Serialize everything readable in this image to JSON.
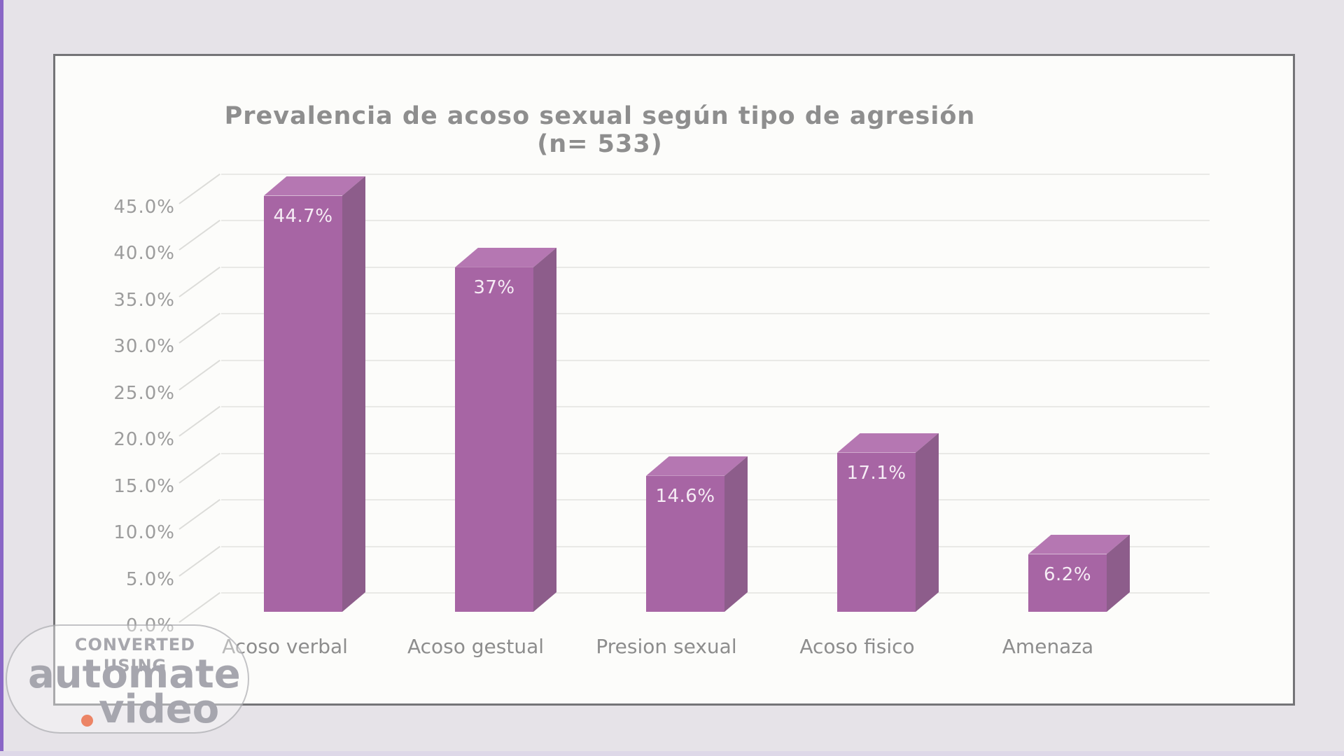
{
  "watermark": {
    "line1": "CONVERTED USING",
    "brand_main": "automate",
    "brand_tld": "video",
    "dot_color": "#ec8465"
  },
  "chart_data": {
    "type": "bar",
    "style": "3d-column",
    "title": "Prevalencia de acoso sexual según tipo de agresión (n= 533)",
    "categories": [
      "Acoso verbal",
      "Acoso gestual",
      "Presion sexual",
      "Acoso fisico",
      "Amenaza"
    ],
    "values": [
      44.7,
      37,
      14.6,
      17.1,
      6.2
    ],
    "data_labels": [
      "44.7%",
      "37%",
      "14.6%",
      "17.1%",
      "6.2%"
    ],
    "xlabel": "",
    "ylabel": "",
    "ylim": [
      0,
      45
    ],
    "y_ticks": [
      {
        "value": 45,
        "label": "45.0%"
      },
      {
        "value": 40,
        "label": "40.0%"
      },
      {
        "value": 35,
        "label": "35.0%"
      },
      {
        "value": 30,
        "label": "30.0%"
      },
      {
        "value": 25,
        "label": "25.0%"
      },
      {
        "value": 20,
        "label": "20.0%"
      },
      {
        "value": 15,
        "label": "15.0%"
      },
      {
        "value": 10,
        "label": "10.0%"
      },
      {
        "value": 5,
        "label": "5.0%"
      },
      {
        "value": 0,
        "label": "0.0%"
      }
    ],
    "grid": true,
    "legend": false,
    "colors": {
      "bar_front": "#a765a4",
      "bar_top": "#b577b2",
      "bar_side": "#8d5d8b",
      "bar_label": "#f6ecf5",
      "title": "#8e8e8e",
      "axis_labels": "#9c9c9c",
      "gridline": "#e9e9e6"
    }
  }
}
